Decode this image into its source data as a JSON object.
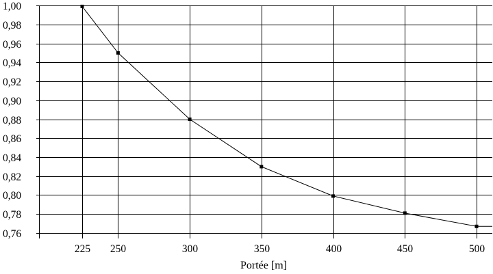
{
  "chart_data": {
    "type": "line",
    "title": "",
    "xlabel": "Portée [m]",
    "ylabel": "",
    "xlim": [
      200,
      520
    ],
    "ylim": [
      0.76,
      1.0
    ],
    "x_ticks": [
      225,
      250,
      300,
      350,
      400,
      450,
      500
    ],
    "x_tick_labels": [
      "225",
      "250",
      "300",
      "350",
      "400",
      "450",
      "500"
    ],
    "y_ticks": [
      0.76,
      0.78,
      0.8,
      0.82,
      0.84,
      0.86,
      0.88,
      0.9,
      0.92,
      0.94,
      0.96,
      0.98,
      1.0
    ],
    "y_tick_labels": [
      "0,76",
      "0,78",
      "0,80",
      "0,82",
      "0,84",
      "0,86",
      "0,88",
      "0,90",
      "0,92",
      "0,94",
      "0,96",
      "0,98",
      "1,00"
    ],
    "grid": true,
    "legend": "none",
    "series": [
      {
        "x": [
          225,
          250,
          300,
          350,
          400,
          450,
          500
        ],
        "y": [
          0.999,
          0.95,
          0.88,
          0.83,
          0.799,
          0.781,
          0.767
        ],
        "color": "#000000",
        "marker": "square"
      }
    ]
  }
}
